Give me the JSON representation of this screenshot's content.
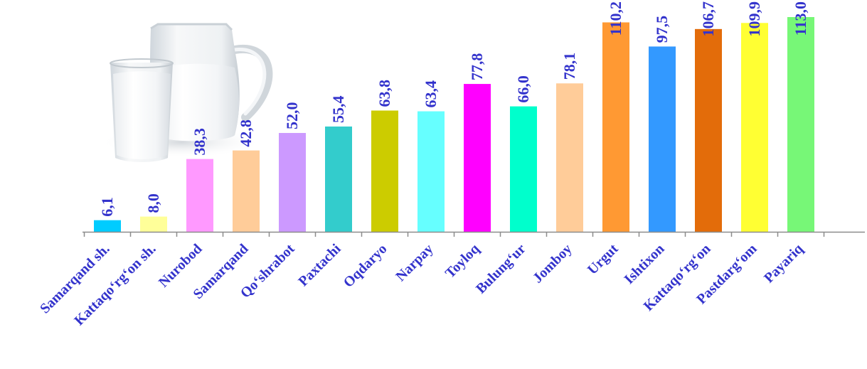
{
  "chart_data": {
    "type": "bar",
    "categories": [
      "Samarqand sh.",
      "Kattaqo‘rg‘on sh.",
      "Nurobod",
      "Samarqand",
      "Qo‘shrabot",
      "Paxtachi",
      "Oqdaryo",
      "Narpay",
      "Toyloq",
      "Bulung‘ur",
      "Jomboy",
      "Urgut",
      "Ishtixon",
      "Kattaqo‘rg‘on",
      "Pastdarg‘om",
      "Payariq"
    ],
    "values": [
      6.1,
      8.0,
      38.3,
      42.8,
      52.0,
      55.4,
      63.8,
      63.4,
      77.8,
      66.0,
      78.1,
      110.2,
      97.5,
      106.7,
      109.9,
      113.0
    ],
    "value_labels": [
      "6,1",
      "8,0",
      "38,3",
      "42,8",
      "52,0",
      "55,4",
      "63,8",
      "63,4",
      "77,8",
      "66,0",
      "78,1",
      "110,2",
      "97,5",
      "106,7",
      "109,9",
      "113,0"
    ],
    "bar_colors": [
      "#00ccff",
      "#ffff99",
      "#ff99ff",
      "#ffcc99",
      "#cc99ff",
      "#33cccc",
      "#cccc00",
      "#66ffff",
      "#ff00ff",
      "#00ffcc",
      "#ffcc99",
      "#ff9933",
      "#3399ff",
      "#e36c0a",
      "#ffff33",
      "#77f777"
    ],
    "label_color": "#3333cc",
    "title": "",
    "xlabel": "",
    "ylabel": "",
    "ylim": [
      0,
      113
    ],
    "grid": false,
    "legend": "none"
  },
  "decoration": {
    "image": "milk-jug-and-glass"
  }
}
